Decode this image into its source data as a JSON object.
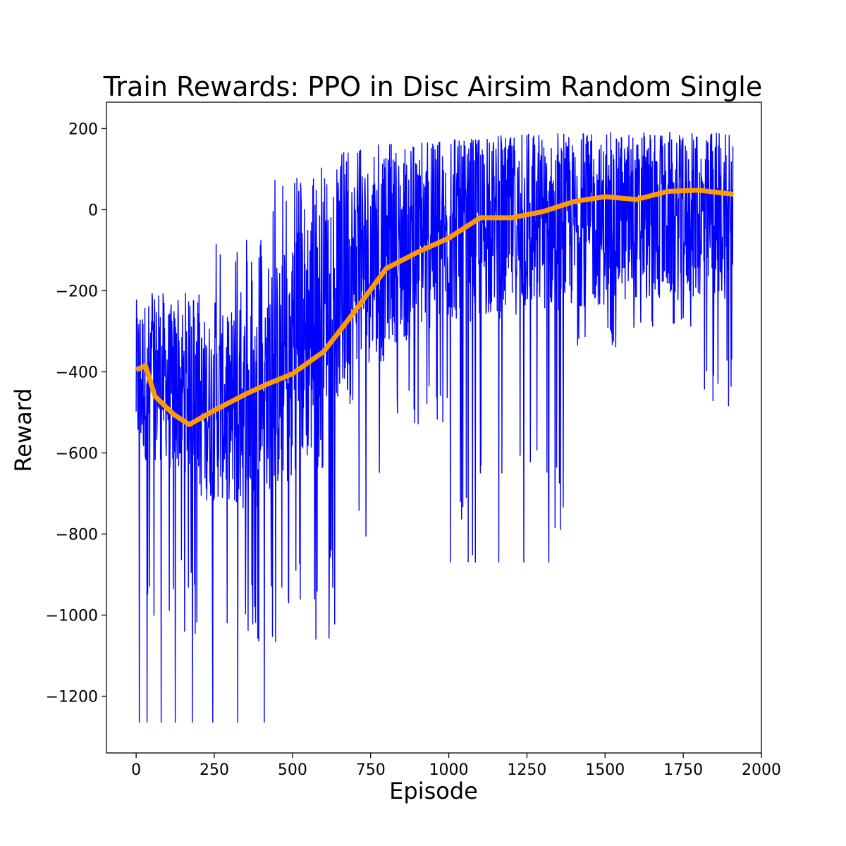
{
  "chart_data": {
    "type": "line",
    "title": "Train Rewards: PPO in Disc Airsim Random Single",
    "xlabel": "Episode",
    "ylabel": "Reward",
    "xlim": [
      -95,
      2000
    ],
    "ylim": [
      -1340,
      265
    ],
    "xticks": [
      0,
      250,
      500,
      750,
      1000,
      1250,
      1500,
      1750,
      2000
    ],
    "yticks": [
      -1200,
      -1000,
      -800,
      -600,
      -400,
      -200,
      0,
      200
    ],
    "xtick_labels": [
      "0",
      "250",
      "500",
      "750",
      "1000",
      "1250",
      "1500",
      "1750",
      "2000"
    ],
    "ytick_labels": [
      "−1200",
      "−1000",
      "−800",
      "−600",
      "−400",
      "−200",
      "0",
      "200"
    ],
    "grid": false,
    "series": [
      {
        "color": "#0000ff",
        "segments": [
          {
            "x": [
              0,
              100
            ],
            "lo": -620,
            "hi": -220,
            "spike_lo": -1075,
            "spike_hi": -205
          },
          {
            "x": [
              100,
              200
            ],
            "lo": -650,
            "hi": -230,
            "spike_lo": -1075,
            "spike_hi": -205
          },
          {
            "x": [
              200,
              300
            ],
            "lo": -720,
            "hi": -260,
            "spike_lo": -1075,
            "spike_hi": -35
          },
          {
            "x": [
              300,
              400
            ],
            "lo": -750,
            "hi": -230,
            "spike_lo": -1075,
            "spike_hi": -35
          },
          {
            "x": [
              400,
              500
            ],
            "lo": -700,
            "hi": -120,
            "spike_lo": -1075,
            "spike_hi": 100
          },
          {
            "x": [
              500,
              600
            ],
            "lo": -640,
            "hi": 40,
            "spike_lo": -1075,
            "spike_hi": 110
          },
          {
            "x": [
              600,
              700
            ],
            "lo": -480,
            "hi": 110,
            "spike_lo": -1075,
            "spike_hi": 160
          },
          {
            "x": [
              700,
              800
            ],
            "lo": -380,
            "hi": 130,
            "spike_lo": -810,
            "spike_hi": 165
          },
          {
            "x": [
              800,
              900
            ],
            "lo": -330,
            "hi": 140,
            "spike_lo": -560,
            "spike_hi": 170
          },
          {
            "x": [
              900,
              1000
            ],
            "lo": -300,
            "hi": 150,
            "spike_lo": -540,
            "spike_hi": 170
          },
          {
            "x": [
              1000,
              1100
            ],
            "lo": -280,
            "hi": 160,
            "spike_lo": -870,
            "spike_hi": 175
          },
          {
            "x": [
              1100,
              1200
            ],
            "lo": -270,
            "hi": 165,
            "spike_lo": -870,
            "spike_hi": 185
          },
          {
            "x": [
              1200,
              1300
            ],
            "lo": -260,
            "hi": 170,
            "spike_lo": -870,
            "spike_hi": 190
          },
          {
            "x": [
              1300,
              1400
            ],
            "lo": -250,
            "hi": 170,
            "spike_lo": -870,
            "spike_hi": 190
          },
          {
            "x": [
              1400,
              1500
            ],
            "lo": -240,
            "hi": 172,
            "spike_lo": -340,
            "spike_hi": 192
          },
          {
            "x": [
              1500,
              1600
            ],
            "lo": -235,
            "hi": 172,
            "spike_lo": -340,
            "spike_hi": 192
          },
          {
            "x": [
              1600,
              1700
            ],
            "lo": -230,
            "hi": 175,
            "spike_lo": -300,
            "spike_hi": 192
          },
          {
            "x": [
              1700,
              1800
            ],
            "lo": -225,
            "hi": 175,
            "spike_lo": -290,
            "spike_hi": 192
          },
          {
            "x": [
              1800,
              1910
            ],
            "lo": -220,
            "hi": 178,
            "spike_lo": -485,
            "spike_hi": 190
          }
        ],
        "notable_spikes": [
          {
            "x": 10,
            "y": -1265
          },
          {
            "x": 35,
            "y": -1265
          },
          {
            "x": 80,
            "y": -1265
          },
          {
            "x": 125,
            "y": -1265
          },
          {
            "x": 180,
            "y": -1265
          },
          {
            "x": 245,
            "y": -1265
          },
          {
            "x": 325,
            "y": -1265
          },
          {
            "x": 410,
            "y": -1265
          },
          {
            "x": 1005,
            "y": -870
          },
          {
            "x": 1085,
            "y": -870
          },
          {
            "x": 1160,
            "y": -870
          },
          {
            "x": 1240,
            "y": -870
          },
          {
            "x": 1320,
            "y": -870
          },
          {
            "x": 1895,
            "y": -485
          }
        ]
      },
      {
        "color": "#ff9900",
        "x": [
          0,
          30,
          60,
          120,
          170,
          250,
          350,
          420,
          500,
          600,
          700,
          800,
          900,
          1000,
          1100,
          1200,
          1300,
          1400,
          1500,
          1600,
          1700,
          1800,
          1910
        ],
        "values": [
          -395,
          -385,
          -460,
          -505,
          -530,
          -495,
          -455,
          -430,
          -405,
          -350,
          -250,
          -145,
          -105,
          -70,
          -20,
          -20,
          -5,
          20,
          32,
          25,
          45,
          48,
          38
        ]
      }
    ]
  }
}
